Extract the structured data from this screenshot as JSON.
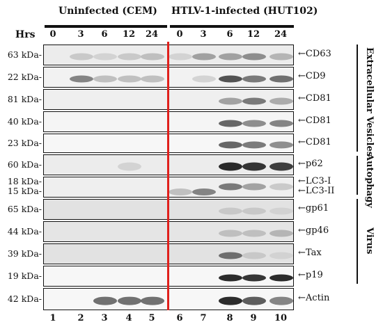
{
  "header": {
    "group_uninfected": "Uninfected (CEM)",
    "group_infected": "HTLV-1-infected (HUT102)",
    "hrs_label": "Hrs",
    "timepoints_uninfected": [
      "0",
      "3",
      "6",
      "12",
      "24"
    ],
    "timepoints_infected": [
      "0",
      "3",
      "6",
      "12",
      "24"
    ]
  },
  "lanes": [
    "1",
    "2",
    "3",
    "4",
    "5",
    "6",
    "7",
    "8",
    "9",
    "10"
  ],
  "blots": [
    {
      "kda": "63 kDa-",
      "markers": [
        "CD63"
      ]
    },
    {
      "kda": "22 kDa-",
      "markers": [
        "CD9"
      ]
    },
    {
      "kda": "81 kDa-",
      "markers": [
        "CD81"
      ]
    },
    {
      "kda": "40 kDa-",
      "markers": [
        "CD81"
      ]
    },
    {
      "kda": "23 kDa-",
      "markers": [
        "CD81"
      ]
    },
    {
      "kda": "60 kDa-",
      "markers": [
        "p62"
      ]
    },
    {
      "kda2": [
        "18 kDa-",
        "15 kDa-"
      ],
      "markers": [
        "LC3-I",
        "LC3-II"
      ]
    },
    {
      "kda": "65 kDa-",
      "markers": [
        "gp61"
      ]
    },
    {
      "kda": "44 kDa-",
      "markers": [
        "gp46"
      ]
    },
    {
      "kda": "39 kDa-",
      "markers": [
        "Tax"
      ]
    },
    {
      "kda": "19 kDa-",
      "markers": [
        "p19"
      ]
    },
    {
      "kda": "42 kDa-",
      "markers": [
        "Actin"
      ]
    }
  ],
  "categories": {
    "ev": "Extracellular Vesicles",
    "autophagy": "Autophagy",
    "virus": "Virus"
  },
  "arrow_glyph": "←",
  "colors": {
    "divider": "#e0201c"
  }
}
